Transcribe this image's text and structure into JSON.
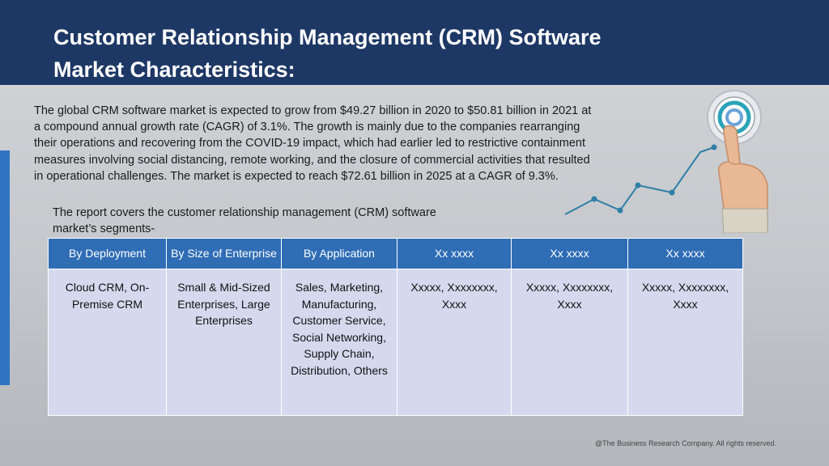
{
  "title": "Customer Relationship Management (CRM) Software\nMarket Characteristics:",
  "paragraph": "The global CRM software market is expected to grow from $49.27 billion in 2020 to $50.81 billion in 2021 at a compound annual growth rate (CAGR) of 3.1%. The growth is mainly due to the companies rearranging their operations and recovering from the COVID-19 impact, which had earlier led to restrictive containment measures involving social distancing, remote working, and the closure of commercial activities that resulted in operational challenges. The market is expected to reach $72.61 billion in 2025 at a CAGR of 9.3%.",
  "subtext": "The report covers the customer relationship management (CRM) software market’s segments-",
  "table": {
    "headers": [
      "By Deployment",
      "By Size of Enterprise",
      "By Application",
      "Xx xxxx",
      "Xx xxxx",
      "Xx xxxx"
    ],
    "row": [
      "Cloud CRM, On-Premise CRM",
      "Small & Mid-Sized Enterprises, Large Enterprises",
      "Sales, Marketing, Manufacturing, Customer Service, Social Networking, Supply Chain, Distribution, Others",
      "Xxxxx, Xxxxxxxx, Xxxx",
      "Xxxxx, Xxxxxxxx, Xxxx",
      "Xxxxx, Xxxxxxxx, Xxxx"
    ]
  },
  "footer": "@The Business Research Company. All rights reserved.",
  "colors": {
    "header_bg": "#1e3866",
    "table_header": "#2f6db5",
    "table_cell": "#d4d9ee",
    "accent": "#2f73c2",
    "graph_line": "#2f7fa6"
  },
  "decor": {
    "target_icon": "target-icon",
    "hand_icon": "pointing-hand-icon",
    "growth_line": "growth-line-graphic"
  }
}
